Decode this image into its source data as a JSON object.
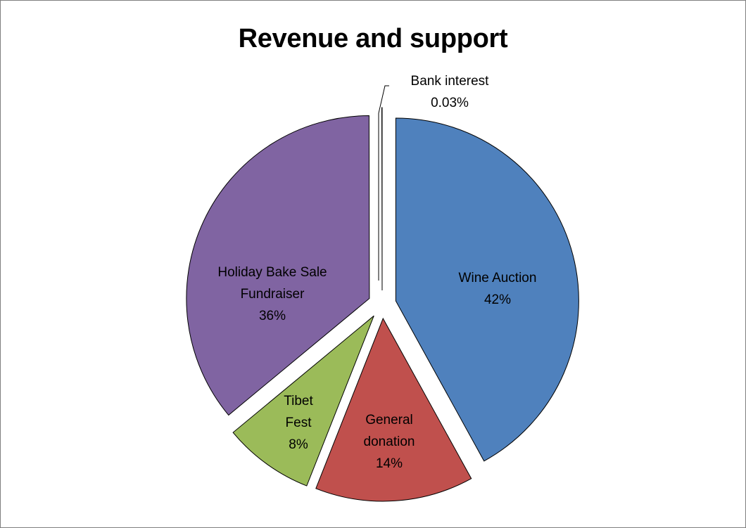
{
  "chart_data": {
    "type": "pie",
    "title": "Revenue and support",
    "slices": [
      {
        "label": "Wine Auction",
        "percent_label": "42%",
        "value": 42.0,
        "color": "#4f81bd"
      },
      {
        "label": "General donation",
        "percent_label": "14%",
        "value": 14.0,
        "color": "#c0504d"
      },
      {
        "label": "Tibet Fest",
        "percent_label": "8%",
        "value": 8.0,
        "color": "#9bbb59"
      },
      {
        "label": "Holiday Bake Sale Fundraiser",
        "percent_label": "36%",
        "value": 36.0,
        "color": "#8064a2"
      },
      {
        "label": "Bank interest",
        "percent_label": "0.03%",
        "value": 0.03,
        "color": "#4bacc6"
      }
    ],
    "exploded": true,
    "legend": "none",
    "data_labels": "category name and percentage"
  }
}
